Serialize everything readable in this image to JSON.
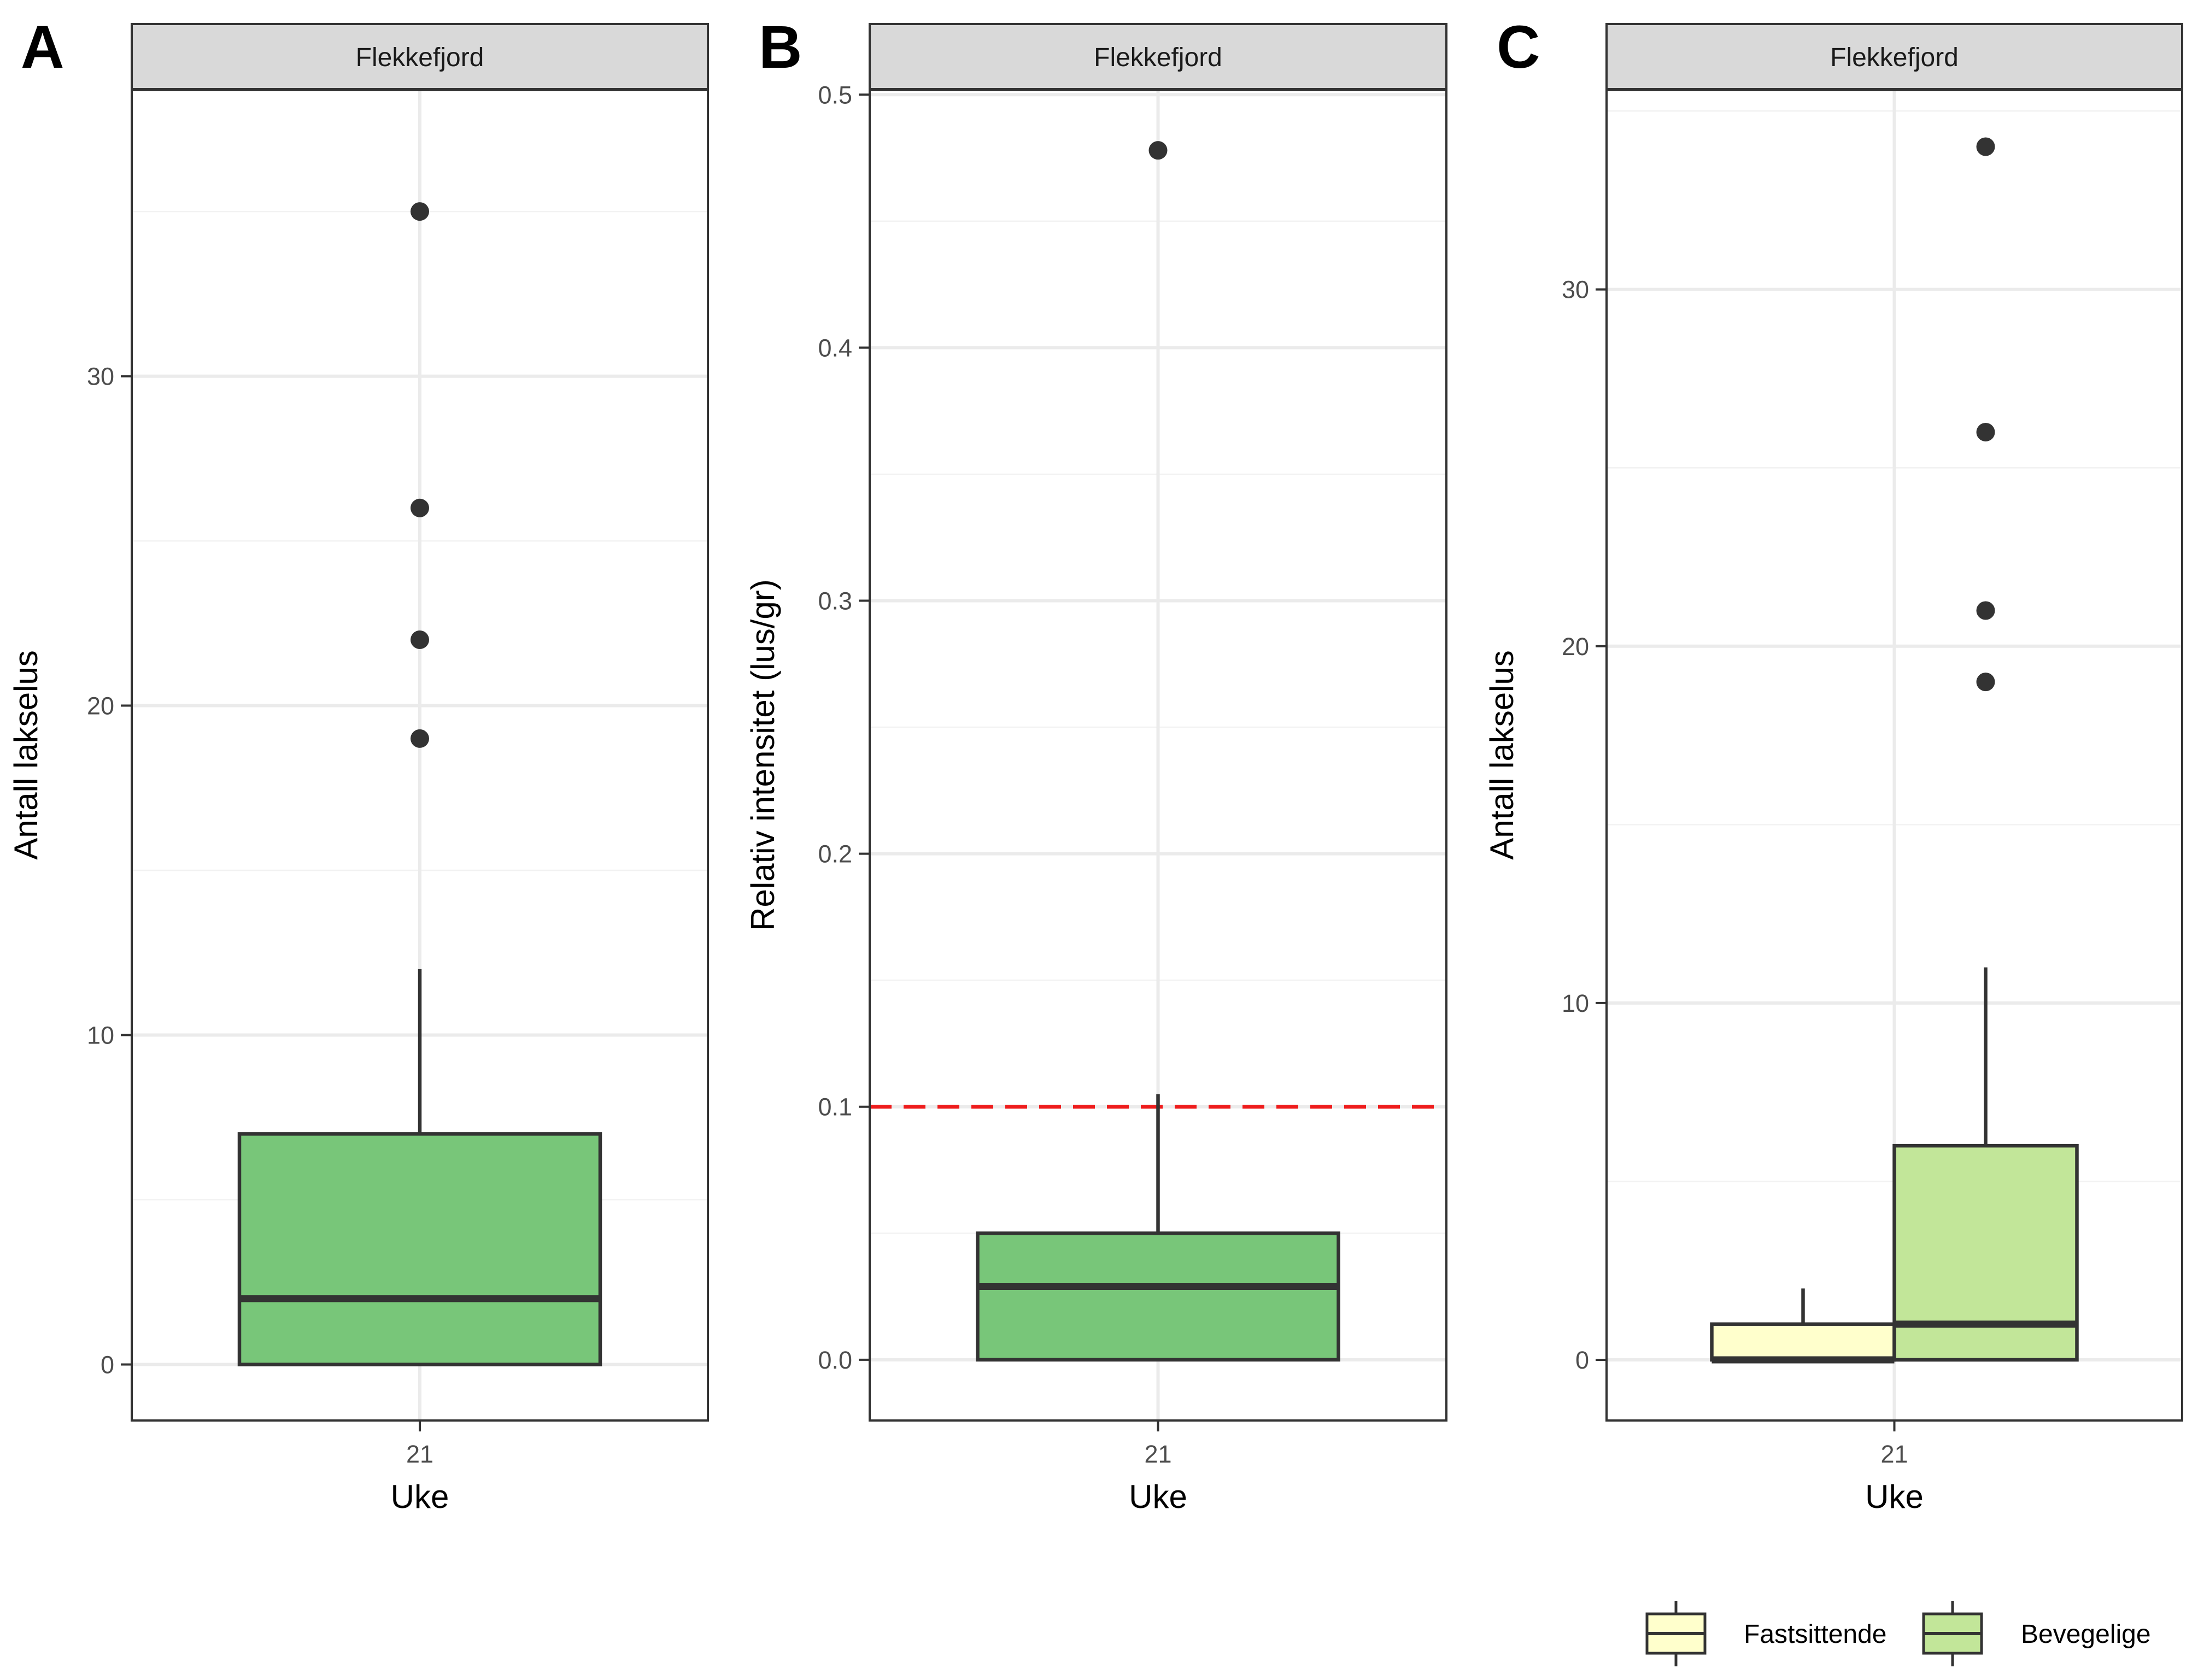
{
  "chart_data": [
    {
      "type": "box",
      "panel_letter": "A",
      "strip": "Flekkefjord",
      "xlabel": "Uke",
      "ylabel": "Antall lakselus",
      "x_categories": [
        "21"
      ],
      "ylim": [
        -1.7,
        38.7
      ],
      "y_ticks": [
        0,
        10,
        20,
        30
      ],
      "y_tick_labels": [
        "0",
        "10",
        "20",
        "30"
      ],
      "grid": true,
      "series": [
        {
          "fill": "#78c679",
          "stats": {
            "lower": 0,
            "q1": 0,
            "median": 2,
            "q3": 7,
            "upper": 12
          },
          "outliers": [
            19,
            22,
            26,
            35
          ]
        }
      ]
    },
    {
      "type": "box",
      "panel_letter": "B",
      "strip": "Flekkefjord",
      "xlabel": "Uke",
      "ylabel": "Relativ intensitet (lus/gr)",
      "x_categories": [
        "21"
      ],
      "ylim": [
        -0.024,
        0.502
      ],
      "y_ticks": [
        0.0,
        0.1,
        0.2,
        0.3,
        0.4,
        0.5
      ],
      "y_tick_labels": [
        "0.0",
        "0.1",
        "0.2",
        "0.3",
        "0.4",
        "0.5"
      ],
      "grid": true,
      "reference_line": {
        "y": 0.1,
        "color": "#ee1c1c",
        "style": "dashed"
      },
      "series": [
        {
          "fill": "#78c679",
          "stats": {
            "lower": 0,
            "q1": 0,
            "median": 0.029,
            "q3": 0.05,
            "upper": 0.105
          },
          "outliers": [
            0.478
          ]
        }
      ]
    },
    {
      "type": "box",
      "panel_letter": "C",
      "strip": "Flekkefjord",
      "xlabel": "Uke",
      "ylabel": "Antall lakselus",
      "x_categories": [
        "21"
      ],
      "ylim": [
        -1.7,
        35.6
      ],
      "y_ticks": [
        0,
        10,
        20,
        30
      ],
      "y_tick_labels": [
        "0",
        "10",
        "20",
        "30"
      ],
      "grid": true,
      "legend_position": "bottom-right",
      "series": [
        {
          "name": "Fastsittende",
          "fill": "#ffffcc",
          "stats": {
            "lower": 0,
            "q1": 0,
            "median": 0,
            "q3": 1,
            "upper": 2
          },
          "outliers": []
        },
        {
          "name": "Bevegelige",
          "fill": "#c2e699",
          "stats": {
            "lower": 0,
            "q1": 0,
            "median": 1,
            "q3": 6,
            "upper": 11
          },
          "outliers": [
            19,
            21,
            26,
            34
          ]
        }
      ]
    }
  ],
  "colors": {
    "grid_major": "#ebebeb",
    "grid_minor": "#f2f2f2",
    "strip_fill": "#d9d9d9",
    "box_outline": "#333333",
    "panel_border": "#333333",
    "tick_text": "#4d4d4d"
  }
}
